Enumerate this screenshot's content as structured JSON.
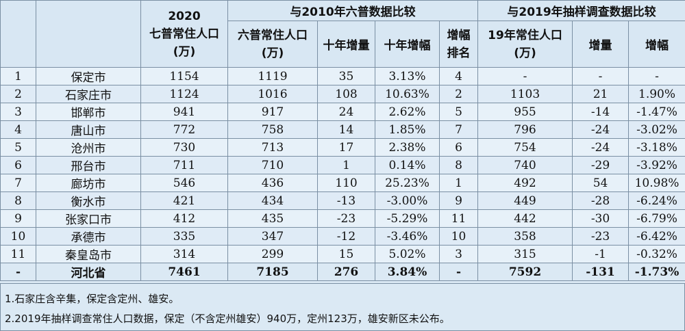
{
  "header": {
    "group_2020": [
      "2020",
      "七普常住人口",
      "(万)"
    ],
    "group_2010": "与2010年六普数据比较",
    "group_2019": "与2019年抽样调查数据比较",
    "liupu": [
      "六普常住人口",
      "(万)"
    ],
    "shinian_zeng": "十年增量",
    "shinian_fu": "十年增幅",
    "rank": [
      "增幅",
      "排名"
    ],
    "pop19": [
      "19年常住人口",
      "(万)"
    ],
    "zengliang": "增量",
    "zengfu": "增幅"
  },
  "rows": [
    {
      "no": "1",
      "city": "保定市",
      "p2020": "1154",
      "p2010": "1119",
      "inc10": "35",
      "rate10": "3.13%",
      "rank": "4",
      "p2019": "-",
      "inc19": "-",
      "rate19": "-"
    },
    {
      "no": "2",
      "city": "石家庄市",
      "p2020": "1124",
      "p2010": "1016",
      "inc10": "108",
      "rate10": "10.63%",
      "rank": "2",
      "p2019": "1103",
      "inc19": "21",
      "rate19": "1.90%"
    },
    {
      "no": "3",
      "city": "邯郸市",
      "p2020": "941",
      "p2010": "917",
      "inc10": "24",
      "rate10": "2.62%",
      "rank": "5",
      "p2019": "955",
      "inc19": "-14",
      "rate19": "-1.47%"
    },
    {
      "no": "4",
      "city": "唐山市",
      "p2020": "772",
      "p2010": "758",
      "inc10": "14",
      "rate10": "1.85%",
      "rank": "7",
      "p2019": "796",
      "inc19": "-24",
      "rate19": "-3.02%"
    },
    {
      "no": "5",
      "city": "沧州市",
      "p2020": "730",
      "p2010": "713",
      "inc10": "17",
      "rate10": "2.38%",
      "rank": "6",
      "p2019": "754",
      "inc19": "-24",
      "rate19": "-3.18%"
    },
    {
      "no": "6",
      "city": "邢台市",
      "p2020": "711",
      "p2010": "710",
      "inc10": "1",
      "rate10": "0.14%",
      "rank": "8",
      "p2019": "740",
      "inc19": "-29",
      "rate19": "-3.92%"
    },
    {
      "no": "7",
      "city": "廊坊市",
      "p2020": "546",
      "p2010": "436",
      "inc10": "110",
      "rate10": "25.23%",
      "rank": "1",
      "p2019": "492",
      "inc19": "54",
      "rate19": "10.98%"
    },
    {
      "no": "8",
      "city": "衡水市",
      "p2020": "421",
      "p2010": "434",
      "inc10": "-13",
      "rate10": "-3.00%",
      "rank": "9",
      "p2019": "449",
      "inc19": "-28",
      "rate19": "-6.24%"
    },
    {
      "no": "9",
      "city": "张家口市",
      "p2020": "412",
      "p2010": "435",
      "inc10": "-23",
      "rate10": "-5.29%",
      "rank": "11",
      "p2019": "442",
      "inc19": "-30",
      "rate19": "-6.79%"
    },
    {
      "no": "10",
      "city": "承德市",
      "p2020": "335",
      "p2010": "347",
      "inc10": "-12",
      "rate10": "-3.46%",
      "rank": "10",
      "p2019": "358",
      "inc19": "-23",
      "rate19": "-6.42%"
    },
    {
      "no": "11",
      "city": "秦皇岛市",
      "p2020": "314",
      "p2010": "299",
      "inc10": "15",
      "rate10": "5.02%",
      "rank": "3",
      "p2019": "315",
      "inc19": "-1",
      "rate19": "-0.32%"
    }
  ],
  "total": {
    "no": "-",
    "city": "河北省",
    "p2020": "7461",
    "p2010": "7185",
    "inc10": "276",
    "rate10": "3.84%",
    "rank": "-",
    "p2019": "7592",
    "inc19": "-131",
    "rate19": "-1.73%"
  },
  "notes": [
    "1.石家庄含辛集，保定含定州、雄安。",
    "2.2019年抽样调查常住人口数据，保定（不含定州雄安）940万，定州123万，雄安新区未公布。"
  ]
}
